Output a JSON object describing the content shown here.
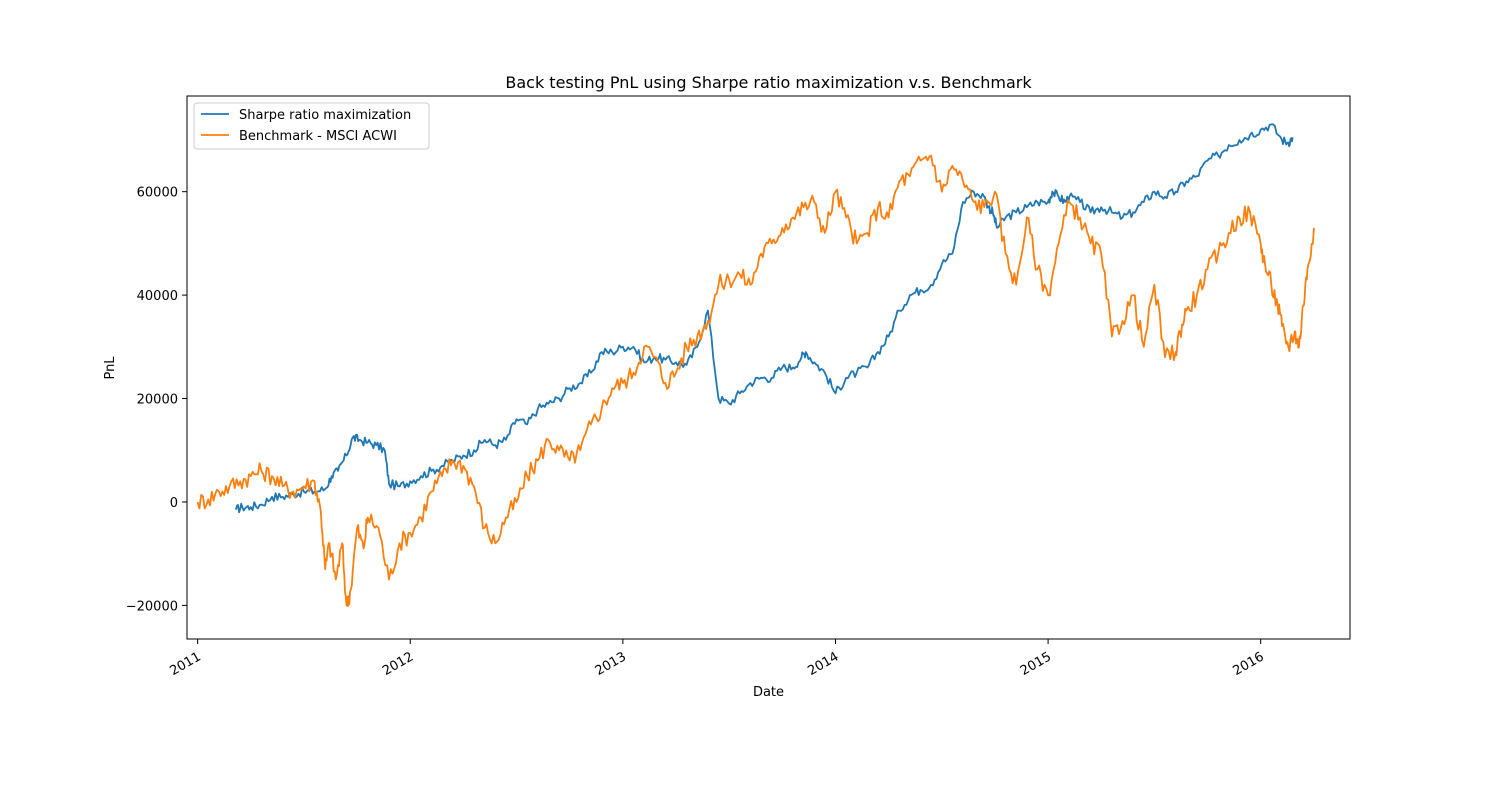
{
  "chart_data": {
    "type": "line",
    "title": "Back testing PnL using Sharpe ratio maximization v.s. Benchmark",
    "xlabel": "Date",
    "ylabel": "PnL",
    "xlim": [
      -0.05,
      5.42
    ],
    "ylim": [
      -26500,
      78500
    ],
    "x_ticks": [
      0,
      1,
      2,
      3,
      4,
      5
    ],
    "x_tick_labels": [
      "2011",
      "2012",
      "2013",
      "2014",
      "2015",
      "2016"
    ],
    "y_ticks": [
      -20000,
      0,
      20000,
      40000,
      60000
    ],
    "y_tick_labels": [
      "−20000",
      "0",
      "20000",
      "40000",
      "60000"
    ],
    "legend_position": "upper-left",
    "colors": {
      "series1": "#1f77b4",
      "series2": "#ff7f0e"
    },
    "series": [
      {
        "name": "Sharpe ratio maximization",
        "color": "#1f77b4",
        "x": [
          0.18,
          0.21,
          0.25,
          0.3,
          0.35,
          0.4,
          0.45,
          0.5,
          0.55,
          0.6,
          0.63,
          0.66,
          0.7,
          0.73,
          0.76,
          0.8,
          0.84,
          0.88,
          0.9,
          0.95,
          1.0,
          1.05,
          1.1,
          1.15,
          1.2,
          1.25,
          1.3,
          1.35,
          1.4,
          1.45,
          1.5,
          1.55,
          1.6,
          1.65,
          1.7,
          1.75,
          1.8,
          1.85,
          1.9,
          1.95,
          2.0,
          2.05,
          2.1,
          2.15,
          2.2,
          2.25,
          2.3,
          2.35,
          2.4,
          2.45,
          2.5,
          2.55,
          2.6,
          2.65,
          2.7,
          2.75,
          2.8,
          2.84,
          2.86,
          2.9,
          2.95,
          3.0,
          3.05,
          3.1,
          3.15,
          3.2,
          3.25,
          3.3,
          3.35,
          3.4,
          3.45,
          3.5,
          3.55,
          3.6,
          3.65,
          3.7,
          3.72,
          3.74,
          3.76,
          3.8,
          3.85,
          3.9,
          3.95,
          4.0,
          4.02,
          4.05,
          4.08,
          4.1,
          4.15,
          4.2,
          4.25,
          4.3,
          4.35,
          4.4,
          4.45,
          4.5,
          4.55,
          4.6,
          4.65,
          4.7,
          4.75,
          4.8,
          4.85,
          4.9,
          4.95,
          5.0,
          5.05,
          5.1,
          5.13,
          5.15
        ],
        "y": [
          -1500,
          -1000,
          -1000,
          -500,
          1000,
          1000,
          1500,
          2000,
          2000,
          2500,
          5000,
          6000,
          9000,
          12500,
          12000,
          11500,
          11000,
          10000,
          3500,
          3000,
          4000,
          5000,
          6000,
          7000,
          8000,
          9000,
          10000,
          12000,
          11000,
          12000,
          16000,
          15000,
          18000,
          19000,
          20000,
          22000,
          23000,
          25000,
          29000,
          29000,
          30000,
          30000,
          27000,
          28000,
          27500,
          27000,
          26500,
          30000,
          37000,
          20000,
          19000,
          21000,
          23000,
          24000,
          24000,
          26000,
          26000,
          28000,
          29000,
          27000,
          25000,
          21000,
          24000,
          25000,
          26000,
          29000,
          32000,
          37000,
          40000,
          41000,
          42000,
          46000,
          48000,
          58000,
          60000,
          59000,
          57000,
          56000,
          53000,
          55000,
          56000,
          57000,
          58000,
          58000,
          60000,
          59000,
          58000,
          59000,
          58000,
          56000,
          57000,
          56000,
          55000,
          56000,
          58000,
          60000,
          59000,
          60000,
          62000,
          63000,
          66000,
          67000,
          69000,
          70000,
          71000,
          72000,
          73000,
          70000,
          69500,
          70500
        ]
      },
      {
        "name": "Benchmark - MSCI ACWI",
        "color": "#ff7f0e",
        "x": [
          0.0,
          0.05,
          0.1,
          0.15,
          0.2,
          0.25,
          0.3,
          0.35,
          0.4,
          0.45,
          0.5,
          0.55,
          0.58,
          0.6,
          0.62,
          0.65,
          0.68,
          0.7,
          0.72,
          0.75,
          0.78,
          0.8,
          0.85,
          0.9,
          0.95,
          1.0,
          1.05,
          1.1,
          1.15,
          1.2,
          1.25,
          1.3,
          1.35,
          1.4,
          1.45,
          1.5,
          1.55,
          1.6,
          1.65,
          1.7,
          1.75,
          1.8,
          1.85,
          1.9,
          1.95,
          2.0,
          2.05,
          2.1,
          2.15,
          2.2,
          2.25,
          2.3,
          2.35,
          2.4,
          2.45,
          2.5,
          2.55,
          2.6,
          2.65,
          2.7,
          2.75,
          2.8,
          2.85,
          2.9,
          2.95,
          3.0,
          3.05,
          3.1,
          3.15,
          3.2,
          3.25,
          3.3,
          3.35,
          3.4,
          3.45,
          3.5,
          3.55,
          3.6,
          3.65,
          3.7,
          3.75,
          3.8,
          3.85,
          3.9,
          3.95,
          4.0,
          4.05,
          4.1,
          4.15,
          4.2,
          4.25,
          4.3,
          4.35,
          4.4,
          4.45,
          4.5,
          4.55,
          4.6,
          4.62,
          4.65,
          4.7,
          4.75,
          4.8,
          4.85,
          4.9,
          4.95,
          5.0,
          5.02,
          5.05,
          5.08,
          5.1,
          5.13,
          5.16,
          5.18,
          5.2,
          5.22,
          5.25
        ],
        "y": [
          0,
          500,
          2000,
          3000,
          4000,
          5000,
          6000,
          5000,
          3000,
          2000,
          3000,
          4000,
          -2000,
          -13000,
          -8000,
          -15000,
          -8000,
          -20000,
          -17000,
          -5000,
          -9000,
          -3000,
          -5000,
          -15000,
          -8000,
          -6000,
          -3000,
          2000,
          5000,
          8000,
          7000,
          3000,
          -5000,
          -8000,
          -3000,
          0,
          5000,
          8000,
          12000,
          10000,
          8000,
          10000,
          15000,
          18000,
          22000,
          23000,
          25000,
          30000,
          28000,
          23000,
          25000,
          30000,
          32000,
          35000,
          42000,
          43000,
          44000,
          42000,
          48000,
          50000,
          53000,
          55000,
          57000,
          58000,
          52000,
          60000,
          55000,
          50000,
          52000,
          57000,
          55000,
          62000,
          63000,
          66000,
          67000,
          60000,
          65000,
          62000,
          58000,
          57000,
          60000,
          48000,
          42000,
          55000,
          45000,
          40000,
          50000,
          58000,
          55000,
          50000,
          48000,
          32000,
          35000,
          40000,
          30000,
          42000,
          28000,
          29000,
          33000,
          37000,
          40000,
          45000,
          48000,
          52000,
          55000,
          56000,
          50000,
          46000,
          42000,
          38000,
          34000,
          30000,
          33000,
          30000,
          38000,
          45000,
          53000
        ]
      }
    ]
  }
}
